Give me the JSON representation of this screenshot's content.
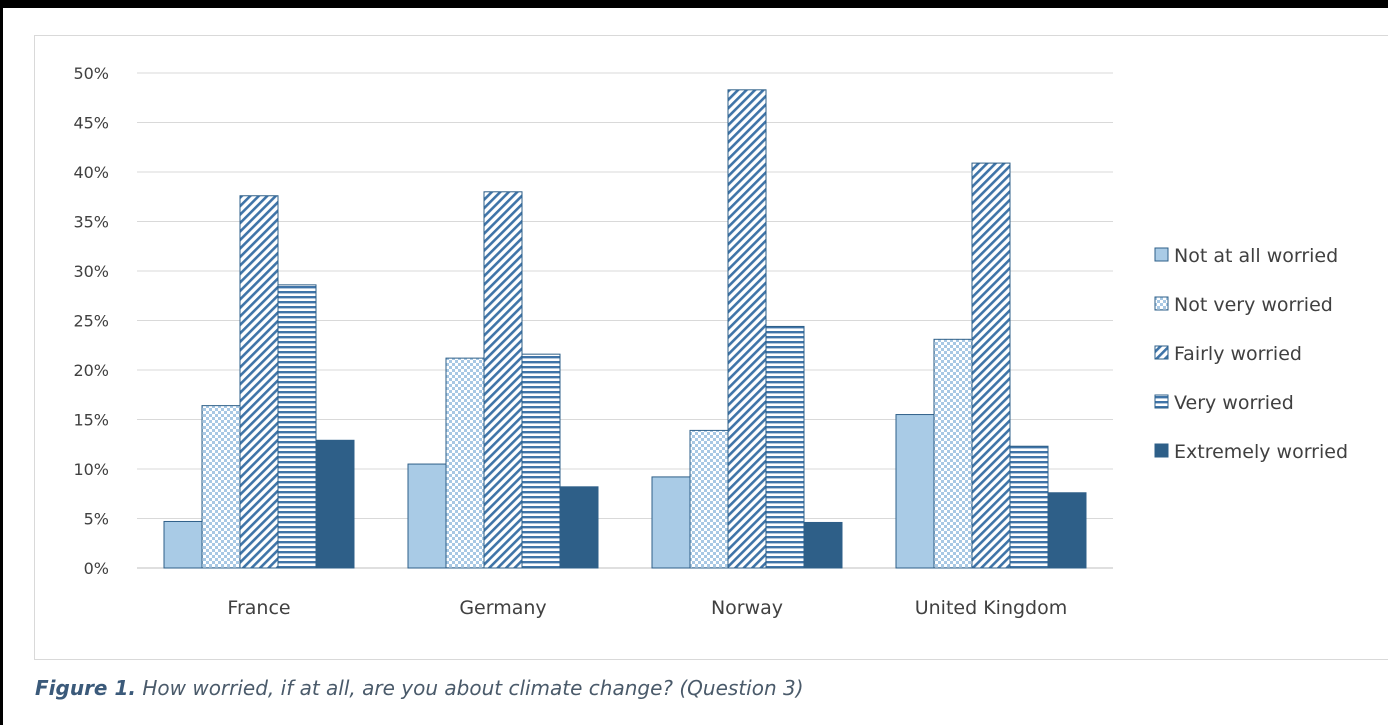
{
  "caption": {
    "label": "Figure 1.",
    "text": " How worried, if at all, are you about climate change? (Question 3)"
  },
  "chart_data": {
    "type": "bar",
    "title": "",
    "xlabel": "",
    "ylabel": "",
    "ylim": [
      0,
      50
    ],
    "y_tick_step": 5,
    "y_tick_format": "percent",
    "grid": true,
    "legend_position": "right",
    "categories": [
      "France",
      "Germany",
      "Norway",
      "United Kingdom"
    ],
    "series": [
      {
        "name": "Not at all worried",
        "values": [
          4.7,
          10.5,
          9.2,
          15.5
        ],
        "color": "#a9cbe6",
        "pattern": "solid-light"
      },
      {
        "name": "Not very worried",
        "values": [
          16.4,
          21.2,
          13.9,
          23.1
        ],
        "color": "#b9d4ea",
        "pattern": "checker"
      },
      {
        "name": "Fairly worried",
        "values": [
          37.6,
          38.0,
          48.3,
          40.9
        ],
        "color": "#4a7db0",
        "pattern": "diagonal"
      },
      {
        "name": "Very worried",
        "values": [
          28.6,
          21.6,
          24.4,
          12.3
        ],
        "color": "#4a7db0",
        "pattern": "horizontal"
      },
      {
        "name": "Extremely worried",
        "values": [
          12.9,
          8.2,
          4.6,
          7.6
        ],
        "color": "#2e5f88",
        "pattern": "solid-dark"
      }
    ]
  }
}
